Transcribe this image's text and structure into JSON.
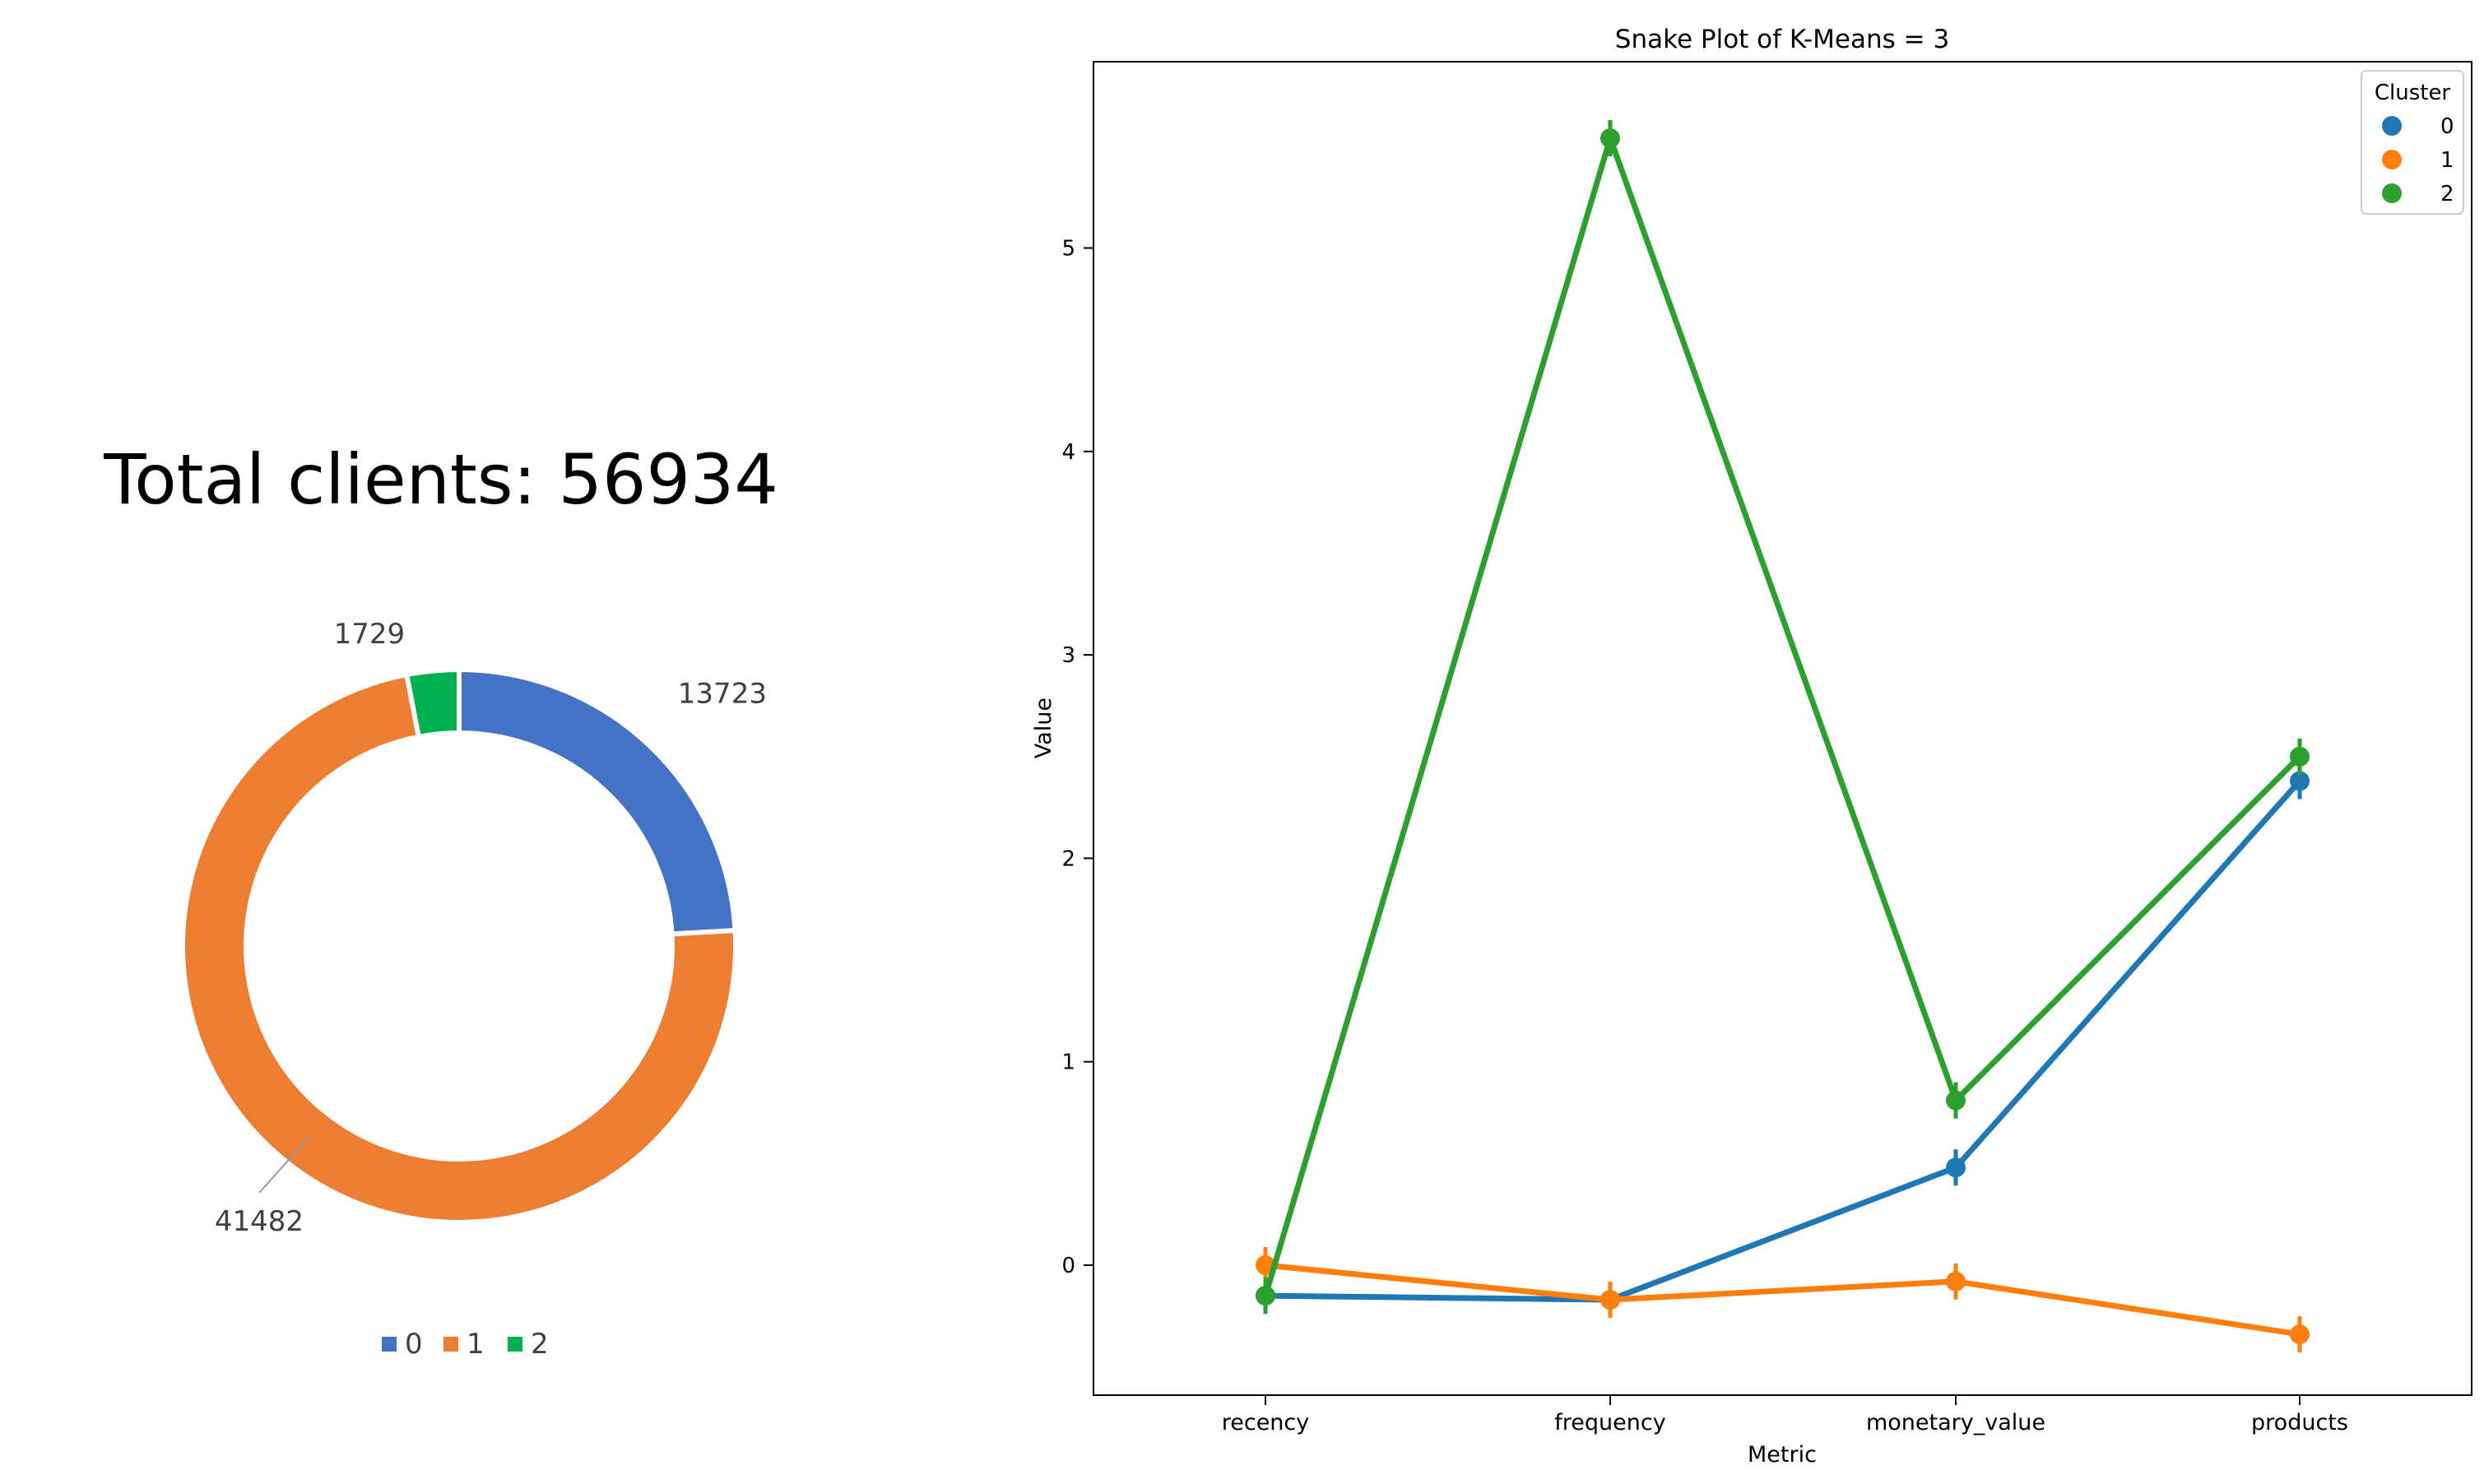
{
  "chart_data": [
    {
      "type": "pie",
      "title": "Total clients: 56934",
      "categories": [
        "0",
        "1",
        "2"
      ],
      "values": [
        13723,
        41482,
        1729
      ],
      "data_labels": [
        "13723",
        "41482",
        "1729"
      ],
      "colors": [
        "#4472c4",
        "#ed7d31",
        "#00b050"
      ],
      "donut": true,
      "legend": {
        "position": "bottom",
        "entries": [
          "0",
          "1",
          "2"
        ]
      }
    },
    {
      "type": "line",
      "title": "Snake Plot of K-Means = 3",
      "xlabel": "Metric",
      "ylabel": "Value",
      "categories": [
        "recency",
        "frequency",
        "monetary_value",
        "products"
      ],
      "ylim": [
        -0.62,
        5.88
      ],
      "yticks": [
        0,
        1,
        2,
        3,
        4,
        5
      ],
      "grid": false,
      "legend": {
        "title": "Cluster",
        "position": "top-right"
      },
      "series": [
        {
          "name": "0",
          "color": "#1f77b4",
          "values": [
            -0.15,
            -0.17,
            0.48,
            2.38
          ]
        },
        {
          "name": "1",
          "color": "#ff7f0e",
          "values": [
            0.0,
            -0.17,
            -0.08,
            -0.34
          ]
        },
        {
          "name": "2",
          "color": "#2ca02c",
          "values": [
            -0.15,
            5.54,
            0.81,
            2.5
          ]
        }
      ]
    }
  ]
}
